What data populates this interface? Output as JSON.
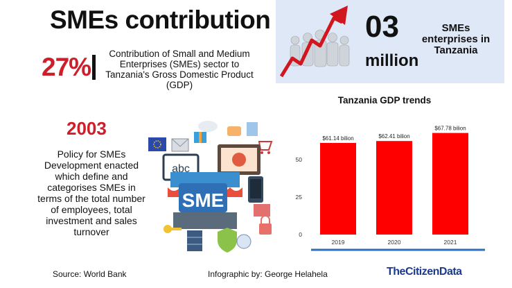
{
  "header": {
    "title": "SMEs contribution"
  },
  "gdp_share": {
    "value": "27%",
    "description": "Contribution of Small and Medium Enterprises (SMEs) sector to Tanzania's Gross Domestic Product (GDP)"
  },
  "enterprises": {
    "number": "03",
    "unit": "million",
    "label": "SMEs enterprises in Tanzania"
  },
  "policy": {
    "year": "2003",
    "text": "Policy for SMEs Development enacted which define and categorises SMEs in terms of the total number of employees, total investment and sales turnover",
    "sign_text": "SME",
    "board_text": "abc"
  },
  "chart_data": {
    "type": "bar",
    "title": "Tanzania GDP trends",
    "categories": [
      "2019",
      "2020",
      "2021"
    ],
    "values": [
      61.14,
      62.41,
      67.78
    ],
    "data_labels": [
      "$61.14 bilion",
      "$62.41 bilion",
      "$67.78 bilion"
    ],
    "y_ticks": [
      0,
      25,
      50
    ],
    "ylim": [
      0,
      75
    ],
    "grid": false,
    "bar_color": "#ff0000"
  },
  "footer": {
    "source": "Source: World Bank",
    "credit": "Infographic by: George Helahela",
    "brand": "TheCitizenData"
  },
  "colors": {
    "accent_red": "#cf1d2a",
    "panel_blue": "#dfe8f6",
    "brand_blue": "#1b3a8c",
    "underline_blue": "#2e6fb5"
  }
}
